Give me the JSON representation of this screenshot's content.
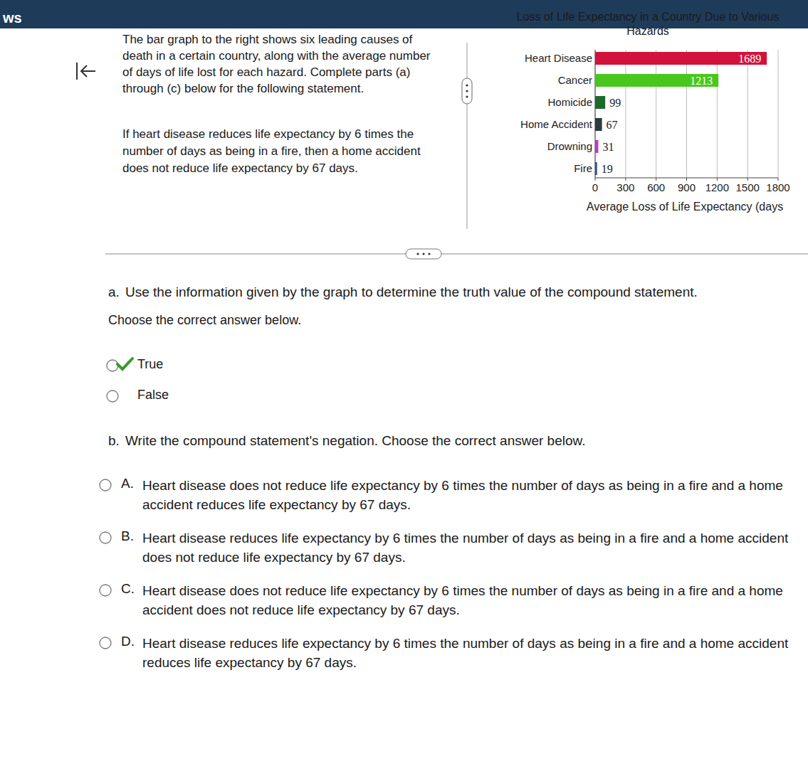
{
  "header": {
    "title": "ws"
  },
  "question": {
    "prompt": "The bar graph to the right shows six leading causes of death in a certain country, along with the average number of days of life lost for each hazard. Complete parts (a) through (c) below for the following statement.",
    "statement": "If heart disease reduces life expectancy by 6 times the number of days as being in a fire, then a home accident does not reduce life expectancy by 67 days."
  },
  "part_a": {
    "label": "a.",
    "question": "Use the information given by the graph to determine the truth value of the compound statement.",
    "instruction": "Choose the correct answer below.",
    "options": [
      {
        "label": "True",
        "selected": true
      },
      {
        "label": "False",
        "selected": false
      }
    ]
  },
  "part_b": {
    "label": "b.",
    "question": "Write the compound statement's negation. Choose the correct answer below.",
    "options": [
      {
        "letter": "A.",
        "text": "Heart disease does not reduce life expectancy by 6 times the number of days as being in a fire and a home accident reduces life expectancy by 67 days."
      },
      {
        "letter": "B.",
        "text": "Heart disease reduces life expectancy by 6 times the number of days as being in a fire and a home accident does not reduce life expectancy by 67 days."
      },
      {
        "letter": "C.",
        "text": "Heart disease does not reduce life expectancy by 6 times the number of days as being in a fire and a home accident does not reduce life expectancy by 67 days."
      },
      {
        "letter": "D.",
        "text": "Heart disease reduces life expectancy by 6 times the number of days as being in a fire and a home accident reduces life expectancy by 67 days."
      }
    ]
  },
  "chart_data": {
    "type": "bar",
    "orientation": "horizontal",
    "title": "Loss of Life Expectancy in a Country Due to Various Hazards",
    "categories": [
      "Heart Disease",
      "Cancer",
      "Homicide",
      "Home Accident",
      "Drowning",
      "Fire"
    ],
    "values": [
      1689,
      1213,
      99,
      67,
      31,
      19
    ],
    "colors": [
      "#d3123c",
      "#48c81c",
      "#1d6b2c",
      "#2b3a3a",
      "#c236c8",
      "#2a4f9c"
    ],
    "xlim": [
      0,
      1800
    ],
    "xticks": [
      0,
      300,
      600,
      900,
      1200,
      1500,
      1800
    ],
    "x_label": "Average Loss of Life Expectancy (days",
    "data_labels": true,
    "grid": true
  }
}
